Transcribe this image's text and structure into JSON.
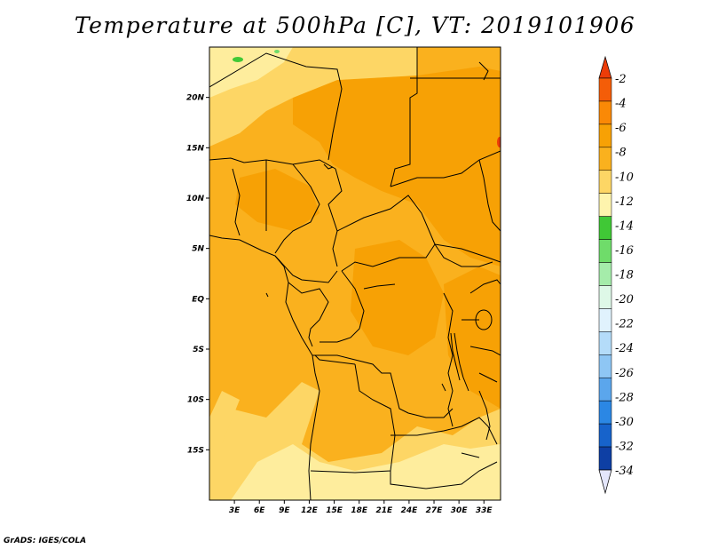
{
  "title": "Temperature at 500hPa [C], VT: 2019101906",
  "credit": "GrADS: IGES/COLA",
  "map": {
    "lat_labels": [
      {
        "text": "20N",
        "lat": 20
      },
      {
        "text": "15N",
        "lat": 15
      },
      {
        "text": "10N",
        "lat": 10
      },
      {
        "text": "5N",
        "lat": 5
      },
      {
        "text": "EQ",
        "lat": 0
      },
      {
        "text": "5S",
        "lat": -5
      },
      {
        "text": "10S",
        "lat": -10
      },
      {
        "text": "15S",
        "lat": -15
      }
    ],
    "lon_labels": [
      {
        "text": "3E",
        "lon": 3
      },
      {
        "text": "6E",
        "lon": 6
      },
      {
        "text": "9E",
        "lon": 9
      },
      {
        "text": "12E",
        "lon": 12
      },
      {
        "text": "15E",
        "lon": 15
      },
      {
        "text": "18E",
        "lon": 18
      },
      {
        "text": "21E",
        "lon": 21
      },
      {
        "text": "24E",
        "lon": 24
      },
      {
        "text": "27E",
        "lon": 27
      },
      {
        "text": "30E",
        "lon": 30
      },
      {
        "text": "33E",
        "lon": 33
      }
    ],
    "lon_range": [
      0,
      35
    ],
    "lat_range": [
      -20,
      25
    ],
    "field_colors": {
      "base": "#fab11e",
      "warm": "#f7a105",
      "cool": "#fdd665",
      "coolest": "#feed9d",
      "green": "#40c836",
      "red": "#ec3c08"
    }
  },
  "colorbar": {
    "labels": [
      "-2",
      "-4",
      "-6",
      "-8",
      "-10",
      "-12",
      "-14",
      "-16",
      "-18",
      "-20",
      "-22",
      "-24",
      "-26",
      "-28",
      "-30",
      "-32",
      "-34"
    ],
    "colors": [
      "#f45d08",
      "#fa8906",
      "#f7a105",
      "#fab11e",
      "#fdd665",
      "#fef4ad",
      "#40c836",
      "#6fdc6a",
      "#a5ecaa",
      "#def8e7",
      "#e0f2fd",
      "#b4dcf9",
      "#8ec6f4",
      "#5ba6ec",
      "#2b87e4",
      "#1763cb",
      "#0e3fa4"
    ],
    "top_arrow_color": "#ec3c08",
    "bottom_arrow_color": "#08105e"
  }
}
